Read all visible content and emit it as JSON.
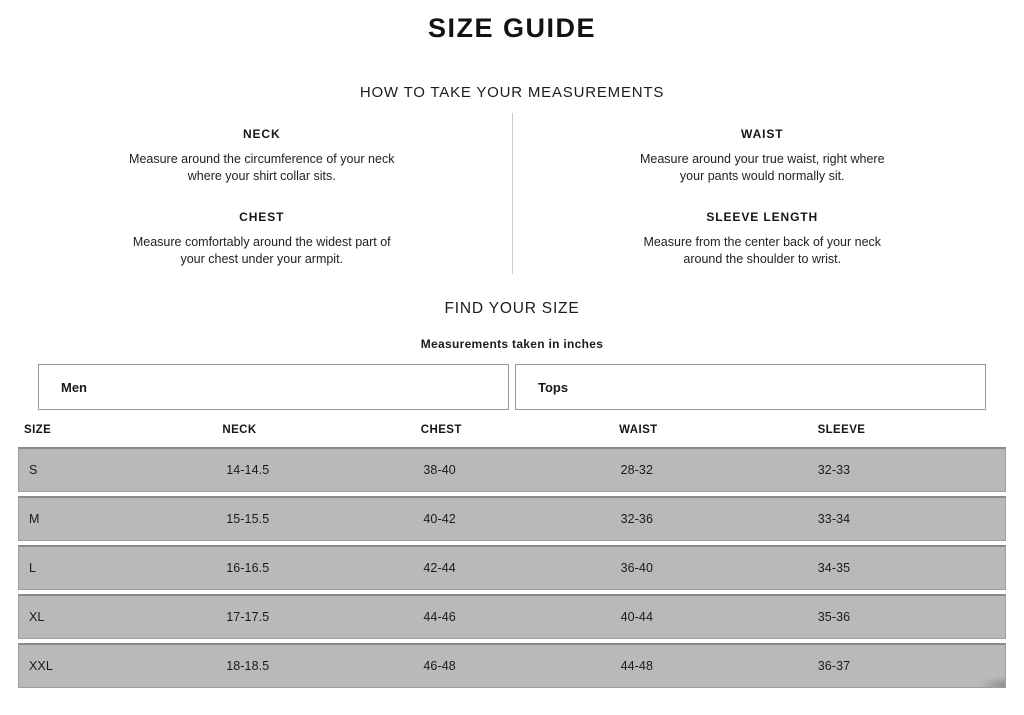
{
  "page": {
    "title": "SIZE GUIDE"
  },
  "how_to": {
    "heading": "HOW TO TAKE YOUR MEASUREMENTS",
    "left": [
      {
        "title": "NECK",
        "description": "Measure around the circumference of your neck where your shirt collar sits."
      },
      {
        "title": "CHEST",
        "description": "Measure comfortably around the widest part of your chest under your armpit."
      }
    ],
    "right": [
      {
        "title": "WAIST",
        "description": "Measure around your true waist, right where your pants would normally sit."
      },
      {
        "title": "SLEEVE LENGTH",
        "description": "Measure from the center back of your neck around the shoulder to wrist."
      }
    ]
  },
  "find_size": {
    "heading": "FIND YOUR SIZE",
    "subheading": "Measurements taken in inches",
    "gender_select": {
      "value": "Men"
    },
    "category_select": {
      "value": "Tops"
    }
  },
  "table": {
    "headers": [
      "SIZE",
      "NECK",
      "CHEST",
      "WAIST",
      "SLEEVE"
    ],
    "rows": [
      {
        "size": "S",
        "neck": "14-14.5",
        "chest": "38-40",
        "waist": "28-32",
        "sleeve": "32-33"
      },
      {
        "size": "M",
        "neck": "15-15.5",
        "chest": "40-42",
        "waist": "32-36",
        "sleeve": "33-34"
      },
      {
        "size": "L",
        "neck": "16-16.5",
        "chest": "42-44",
        "waist": "36-40",
        "sleeve": "34-35"
      },
      {
        "size": "XL",
        "neck": "17-17.5",
        "chest": "44-46",
        "waist": "40-44",
        "sleeve": "35-36"
      },
      {
        "size": "XXL",
        "neck": "18-18.5",
        "chest": "46-48",
        "waist": "44-48",
        "sleeve": "36-37"
      }
    ]
  },
  "colors": {
    "row_bg": "#b9b9b9",
    "row_border": "#9e9e9e",
    "row_border_top": "#8a8a8a",
    "select_border": "#999999",
    "divider": "#cccccc",
    "text": "#1e1e1e"
  }
}
